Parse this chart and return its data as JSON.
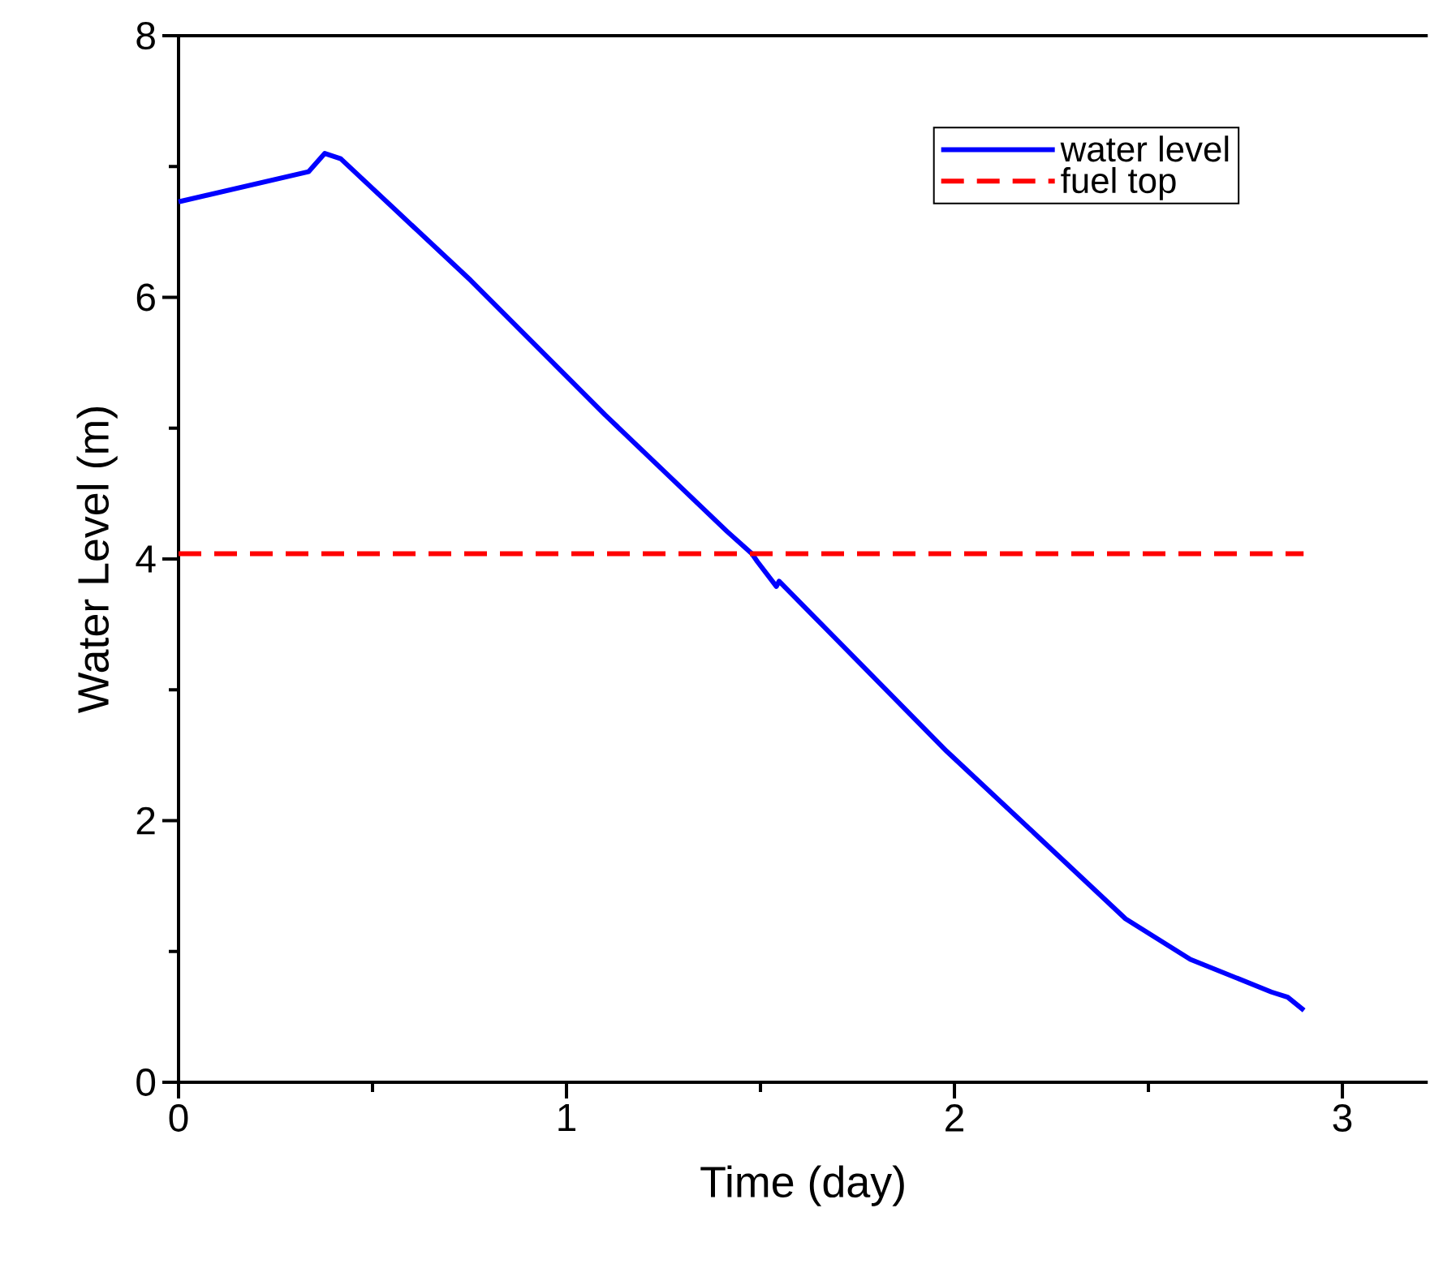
{
  "chart_data": {
    "type": "line",
    "xlabel": "Time (day)",
    "ylabel": "Water Level (m)",
    "xlim": [
      0,
      3.22
    ],
    "ylim": [
      0,
      8
    ],
    "xticks": [
      0,
      {
        "value": 0.5,
        "label": null
      },
      1,
      {
        "value": 1.5,
        "label": null
      },
      2,
      {
        "value": 2.5,
        "label": null
      },
      3
    ],
    "yticks": [
      0,
      {
        "value": 1,
        "label": null
      },
      2,
      {
        "value": 3,
        "label": null
      },
      4,
      {
        "value": 5,
        "label": null
      },
      6,
      {
        "value": 7,
        "label": null
      },
      8
    ],
    "legend": "top right",
    "series": [
      {
        "name": "water level",
        "color": "#0000ff",
        "line_style": "solid",
        "x": [
          0,
          0.335,
          0.377,
          0.418,
          0.753,
          1.1,
          1.414,
          1.478,
          1.492,
          1.541,
          1.548,
          1.98,
          2.218,
          2.441,
          2.608,
          2.817,
          2.859,
          2.901
        ],
        "values": [
          6.73,
          6.96,
          7.1,
          7.06,
          6.13,
          5.1,
          4.21,
          4.04,
          3.98,
          3.79,
          3.83,
          2.53,
          1.87,
          1.25,
          0.94,
          0.69,
          0.65,
          0.55
        ]
      },
      {
        "name": "fuel top",
        "color": "#ff0000",
        "line_style": "dashed",
        "x": [
          0,
          2.9
        ],
        "values": [
          4.04,
          4.04
        ]
      }
    ]
  }
}
